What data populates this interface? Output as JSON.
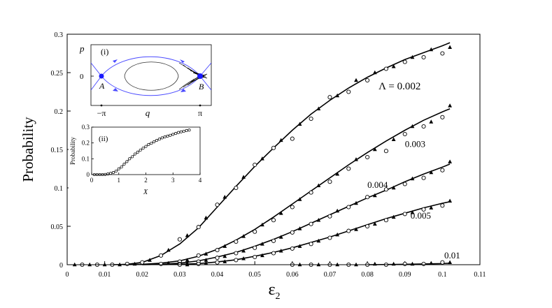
{
  "chart_data": [
    {
      "type": "scatter",
      "xlabel": "ε",
      "xlabel_sub": "2",
      "ylabel": "Probability",
      "xlim": [
        0,
        0.11
      ],
      "ylim": [
        0,
        0.3
      ],
      "xticks": [
        "0",
        "0.01",
        "0.02",
        "0.03",
        "0.04",
        "0.05",
        "0.06",
        "0.07",
        "0.08",
        "0.09",
        "0.1",
        "0.11"
      ],
      "yticks": [
        "0",
        "0.05",
        "0.1",
        "0.15",
        "0.2",
        "0.25",
        "0.3"
      ],
      "grid": false,
      "annotation_prefix": "Λ = ",
      "series": [
        {
          "label": "0.002",
          "curve": {
            "x": [
              0.012,
              0.016,
              0.02,
              0.025,
              0.03,
              0.035,
              0.04,
              0.045,
              0.05,
              0.055,
              0.06,
              0.065,
              0.07,
              0.075,
              0.08,
              0.085,
              0.09,
              0.095,
              0.1,
              0.102
            ],
            "y": [
              0,
              0.0005,
              0.003,
              0.012,
              0.027,
              0.048,
              0.075,
              0.102,
              0.128,
              0.152,
              0.175,
              0.196,
              0.214,
              0.23,
              0.244,
              0.256,
              0.267,
              0.276,
              0.285,
              0.289
            ]
          },
          "circles": {
            "x": [
              0.004,
              0.008,
              0.012,
              0.016,
              0.02,
              0.025,
              0.03,
              0.035,
              0.04,
              0.045,
              0.05,
              0.055,
              0.06,
              0.065,
              0.07,
              0.075,
              0.08,
              0.085,
              0.09,
              0.095,
              0.1
            ],
            "y": [
              0,
              0,
              0,
              0.001,
              0.003,
              0.012,
              0.033,
              0.049,
              0.078,
              0.1,
              0.13,
              0.152,
              0.164,
              0.19,
              0.218,
              0.225,
              0.24,
              0.255,
              0.264,
              0.27,
              0.275
            ]
          },
          "triangles": {
            "x": [
              0.002,
              0.006,
              0.01,
              0.014,
              0.018,
              0.022,
              0.027,
              0.032,
              0.037,
              0.042,
              0.047,
              0.052,
              0.057,
              0.062,
              0.067,
              0.072,
              0.077,
              0.082,
              0.087,
              0.092,
              0.097,
              0.102
            ],
            "y": [
              0,
              0,
              0,
              0,
              0.001,
              0.006,
              0.019,
              0.038,
              0.061,
              0.088,
              0.114,
              0.138,
              0.162,
              0.183,
              0.203,
              0.22,
              0.24,
              0.25,
              0.258,
              0.27,
              0.28,
              0.283
            ]
          },
          "label_at": [
            0.083,
            0.228
          ]
        },
        {
          "label": "0.003",
          "curve": {
            "x": [
              0.015,
              0.02,
              0.025,
              0.03,
              0.035,
              0.04,
              0.045,
              0.05,
              0.055,
              0.06,
              0.065,
              0.07,
              0.075,
              0.08,
              0.085,
              0.09,
              0.095,
              0.1,
              0.102
            ],
            "y": [
              0,
              0.0005,
              0.002,
              0.005,
              0.011,
              0.02,
              0.032,
              0.046,
              0.062,
              0.079,
              0.096,
              0.113,
              0.13,
              0.146,
              0.161,
              0.175,
              0.188,
              0.199,
              0.203
            ]
          },
          "circles": {
            "x": [
              0.025,
              0.03,
              0.035,
              0.04,
              0.045,
              0.05,
              0.055,
              0.06,
              0.065,
              0.07,
              0.075,
              0.08,
              0.085,
              0.09,
              0.095,
              0.1
            ],
            "y": [
              0.001,
              0.004,
              0.012,
              0.019,
              0.03,
              0.043,
              0.058,
              0.075,
              0.094,
              0.108,
              0.125,
              0.14,
              0.148,
              0.17,
              0.18,
              0.192
            ]
          },
          "triangles": {
            "x": [
              0.027,
              0.032,
              0.037,
              0.042,
              0.047,
              0.052,
              0.057,
              0.062,
              0.067,
              0.072,
              0.077,
              0.082,
              0.087,
              0.092,
              0.097,
              0.102
            ],
            "y": [
              0.002,
              0.006,
              0.014,
              0.024,
              0.037,
              0.052,
              0.067,
              0.085,
              0.103,
              0.118,
              0.137,
              0.15,
              0.163,
              0.18,
              0.186,
              0.207
            ]
          },
          "label_at": [
            0.09,
            0.153
          ]
        },
        {
          "label": "0.004",
          "curve": {
            "x": [
              0.02,
              0.025,
              0.03,
              0.035,
              0.04,
              0.045,
              0.05,
              0.055,
              0.06,
              0.065,
              0.07,
              0.075,
              0.08,
              0.085,
              0.09,
              0.095,
              0.1,
              0.102
            ],
            "y": [
              0,
              0.0005,
              0.002,
              0.005,
              0.01,
              0.016,
              0.024,
              0.033,
              0.043,
              0.054,
              0.065,
              0.076,
              0.087,
              0.097,
              0.108,
              0.118,
              0.127,
              0.131
            ]
          },
          "circles": {
            "x": [
              0.03,
              0.035,
              0.04,
              0.045,
              0.05,
              0.055,
              0.06,
              0.065,
              0.07,
              0.075,
              0.08,
              0.085,
              0.09,
              0.095,
              0.1
            ],
            "y": [
              0.001,
              0.004,
              0.009,
              0.015,
              0.022,
              0.031,
              0.042,
              0.053,
              0.063,
              0.075,
              0.088,
              0.098,
              0.105,
              0.113,
              0.123
            ]
          },
          "triangles": {
            "x": [
              0.032,
              0.037,
              0.042,
              0.047,
              0.052,
              0.057,
              0.062,
              0.067,
              0.072,
              0.077,
              0.082,
              0.087,
              0.092,
              0.097,
              0.102
            ],
            "y": [
              0.002,
              0.006,
              0.011,
              0.018,
              0.027,
              0.036,
              0.047,
              0.058,
              0.07,
              0.08,
              0.09,
              0.1,
              0.112,
              0.12,
              0.134
            ]
          },
          "label_at": [
            0.08,
            0.1
          ]
        },
        {
          "label": "0.005",
          "curve": {
            "x": [
              0.025,
              0.03,
              0.035,
              0.04,
              0.045,
              0.05,
              0.055,
              0.06,
              0.065,
              0.07,
              0.075,
              0.08,
              0.085,
              0.09,
              0.095,
              0.1,
              0.102
            ],
            "y": [
              0,
              0.0005,
              0.0015,
              0.0035,
              0.0065,
              0.011,
              0.016,
              0.022,
              0.029,
              0.036,
              0.044,
              0.052,
              0.06,
              0.067,
              0.074,
              0.08,
              0.082
            ]
          },
          "circles": {
            "x": [
              0.03,
              0.035,
              0.04,
              0.045,
              0.05,
              0.055,
              0.06,
              0.065,
              0.07,
              0.075,
              0.08,
              0.085,
              0.09,
              0.095,
              0.1
            ],
            "y": [
              0,
              0.001,
              0.003,
              0.006,
              0.01,
              0.015,
              0.021,
              0.027,
              0.035,
              0.044,
              0.05,
              0.058,
              0.066,
              0.072,
              0.077
            ]
          },
          "triangles": {
            "x": [
              0.032,
              0.037,
              0.042,
              0.047,
              0.052,
              0.057,
              0.062,
              0.067,
              0.072,
              0.077,
              0.082,
              0.087,
              0.092,
              0.097,
              0.102
            ],
            "y": [
              0,
              0.002,
              0.004,
              0.008,
              0.012,
              0.018,
              0.024,
              0.031,
              0.039,
              0.046,
              0.053,
              0.062,
              0.068,
              0.074,
              0.083
            ]
          },
          "label_at": [
            0.0915,
            0.06
          ]
        },
        {
          "label": "0.01",
          "curve": {
            "x": [
              0.08,
              0.09,
              0.095,
              0.1,
              0.102
            ],
            "y": [
              0,
              0.0005,
              0.001,
              0.0015,
              0.002
            ]
          },
          "circles": {
            "x": [
              0.06,
              0.065,
              0.07,
              0.075,
              0.08,
              0.085,
              0.09,
              0.095,
              0.1
            ],
            "y": [
              0,
              0,
              0,
              0,
              0,
              0,
              0.001,
              0.001,
              0.003
            ]
          },
          "triangles": {
            "x": [
              0.062,
              0.067,
              0.072,
              0.077,
              0.082,
              0.087,
              0.092,
              0.097,
              0.102
            ],
            "y": [
              0,
              0,
              0,
              0,
              0.001,
              0.001,
              0.001,
              0.002,
              0.003
            ]
          },
          "label_at": [
            0.1005,
            0.008
          ]
        }
      ]
    },
    {
      "type": "diagram",
      "panel_label": "(i)",
      "ylabel": "p",
      "xlabel": "q",
      "ytick": "0",
      "xticks": [
        "−π",
        "π"
      ],
      "point_labels": [
        "A",
        "B"
      ]
    },
    {
      "type": "scatter",
      "panel_label": "(ii)",
      "xlabel": "X",
      "ylabel": "Probability",
      "xlim": [
        0,
        4
      ],
      "ylim": [
        0,
        0.3
      ],
      "xticks": [
        "0",
        "1",
        "2",
        "3",
        "4"
      ],
      "yticks": [
        "0",
        "0.1",
        "0.2",
        "0.3"
      ],
      "curve": {
        "x": [
          0,
          0.3,
          0.5,
          0.6,
          0.7,
          0.8,
          0.9,
          1.0,
          1.1,
          1.2,
          1.3,
          1.4,
          1.5,
          1.6,
          1.8,
          2.0,
          2.2,
          2.4,
          2.6,
          2.8,
          3.0,
          3.2,
          3.4,
          3.6
        ],
        "y": [
          0,
          0,
          0.001,
          0.003,
          0.007,
          0.013,
          0.022,
          0.035,
          0.05,
          0.066,
          0.083,
          0.099,
          0.114,
          0.129,
          0.156,
          0.18,
          0.2,
          0.217,
          0.232,
          0.245,
          0.256,
          0.266,
          0.274,
          0.28
        ]
      },
      "circles": {
        "x": [
          0.1,
          0.2,
          0.3,
          0.4,
          0.5,
          0.6,
          0.7,
          0.8,
          0.9,
          1.0,
          1.1,
          1.2,
          1.3,
          1.4,
          1.5,
          1.6,
          1.7,
          1.8,
          1.9,
          2.0,
          2.1,
          2.2,
          2.3,
          2.4,
          2.5,
          2.6,
          2.7,
          2.8,
          2.9,
          3.0,
          3.1,
          3.2,
          3.3,
          3.4,
          3.5,
          3.6
        ],
        "y": [
          0,
          0,
          0,
          0,
          0.001,
          0.004,
          0.008,
          0.013,
          0.022,
          0.036,
          0.048,
          0.066,
          0.082,
          0.1,
          0.113,
          0.13,
          0.142,
          0.155,
          0.167,
          0.178,
          0.19,
          0.198,
          0.207,
          0.216,
          0.224,
          0.232,
          0.238,
          0.243,
          0.248,
          0.254,
          0.26,
          0.266,
          0.27,
          0.274,
          0.278,
          0.281
        ]
      }
    }
  ]
}
